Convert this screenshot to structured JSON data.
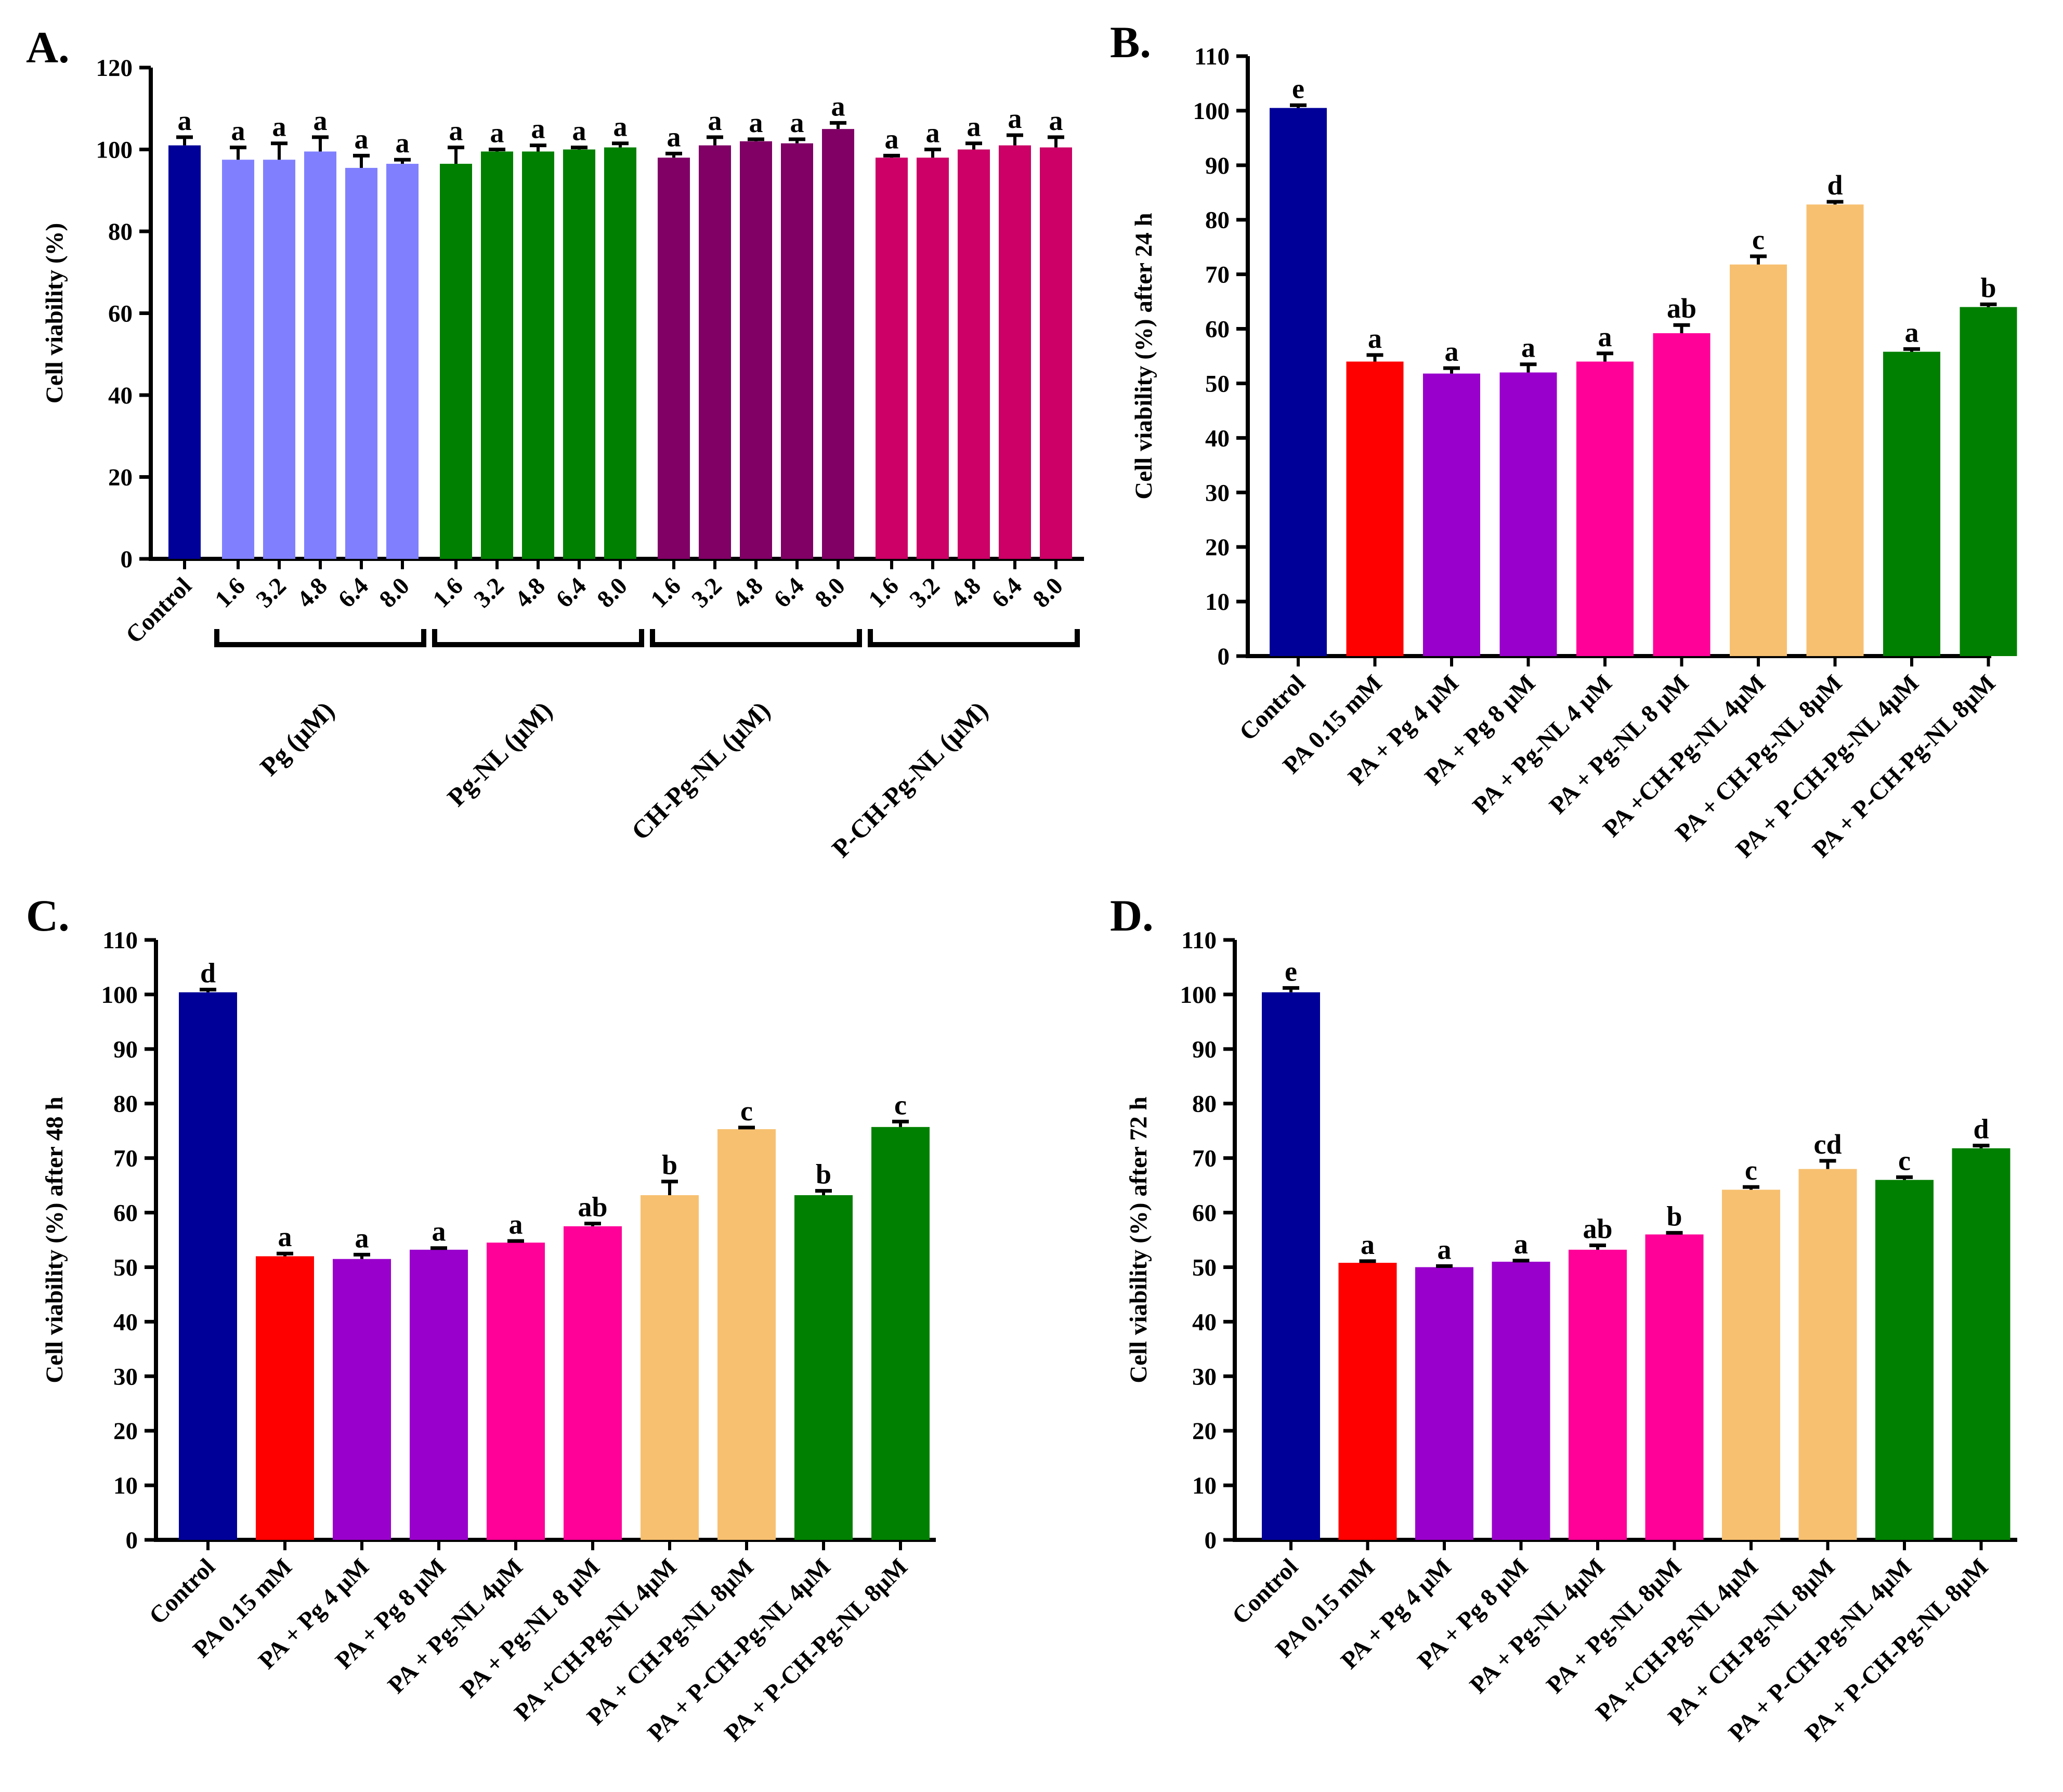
{
  "chart_data": [
    {
      "panel": "A.",
      "type": "bar",
      "ylabel": "Cell viability (%)",
      "ylim": [
        0,
        120
      ],
      "yticks": [
        0,
        20,
        40,
        60,
        80,
        100,
        120
      ],
      "bars": [
        {
          "label": "Control",
          "value": 101,
          "error": 2,
          "sig": "a",
          "color": "#000099",
          "group": null
        },
        {
          "label": "1.6",
          "value": 97.5,
          "error": 3,
          "sig": "a",
          "color": "#8080ff",
          "group": 0
        },
        {
          "label": "3.2",
          "value": 97.5,
          "error": 4,
          "sig": "a",
          "color": "#8080ff",
          "group": 0
        },
        {
          "label": "4.8",
          "value": 99.5,
          "error": 3.5,
          "sig": "a",
          "color": "#8080ff",
          "group": 0
        },
        {
          "label": "6.4",
          "value": 95.5,
          "error": 3,
          "sig": "a",
          "color": "#8080ff",
          "group": 0
        },
        {
          "label": "8.0",
          "value": 96.5,
          "error": 1,
          "sig": "a",
          "color": "#8080ff",
          "group": 0
        },
        {
          "label": "1.6",
          "value": 96.5,
          "error": 4,
          "sig": "a",
          "color": "#008000",
          "group": 1
        },
        {
          "label": "3.2",
          "value": 99.5,
          "error": 0.5,
          "sig": "a",
          "color": "#008000",
          "group": 1
        },
        {
          "label": "4.8",
          "value": 99.5,
          "error": 1.5,
          "sig": "a",
          "color": "#008000",
          "group": 1
        },
        {
          "label": "6.4",
          "value": 100,
          "error": 0.5,
          "sig": "a",
          "color": "#008000",
          "group": 1
        },
        {
          "label": "8.0",
          "value": 100.5,
          "error": 1,
          "sig": "a",
          "color": "#008000",
          "group": 1
        },
        {
          "label": "1.6",
          "value": 98,
          "error": 1,
          "sig": "a",
          "color": "#800066",
          "group": 2
        },
        {
          "label": "3.2",
          "value": 101,
          "error": 2,
          "sig": "a",
          "color": "#800066",
          "group": 2
        },
        {
          "label": "4.8",
          "value": 102,
          "error": 0.5,
          "sig": "a",
          "color": "#800066",
          "group": 2
        },
        {
          "label": "6.4",
          "value": 101.5,
          "error": 1,
          "sig": "a",
          "color": "#800066",
          "group": 2
        },
        {
          "label": "8.0",
          "value": 105,
          "error": 1.5,
          "sig": "a",
          "color": "#800066",
          "group": 2
        },
        {
          "label": "1.6",
          "value": 98,
          "error": 0.5,
          "sig": "a",
          "color": "#cc0066",
          "group": 3
        },
        {
          "label": "3.2",
          "value": 98,
          "error": 2,
          "sig": "a",
          "color": "#cc0066",
          "group": 3
        },
        {
          "label": "4.8",
          "value": 100,
          "error": 1.5,
          "sig": "a",
          "color": "#cc0066",
          "group": 3
        },
        {
          "label": "6.4",
          "value": 101,
          "error": 2.5,
          "sig": "a",
          "color": "#cc0066",
          "group": 3
        },
        {
          "label": "8.0",
          "value": 100.5,
          "error": 2.5,
          "sig": "a",
          "color": "#cc0066",
          "group": 3
        }
      ],
      "groups": [
        "Pg (μM)",
        "Pg-NL (μM)",
        "CH-Pg-NL (μM)",
        "P-CH-Pg-NL (μM)"
      ]
    },
    {
      "panel": "B.",
      "type": "bar",
      "ylabel": "Cell viability (%) after 24 h",
      "ylim": [
        0,
        110
      ],
      "yticks": [
        0,
        10,
        20,
        30,
        40,
        50,
        60,
        70,
        80,
        90,
        100,
        110
      ],
      "bars": [
        {
          "label": "Control",
          "value": 100.5,
          "error": 0.5,
          "sig": "e",
          "color": "#000099"
        },
        {
          "label": "PA 0.15 mM",
          "value": 54,
          "error": 1.2,
          "sig": "a",
          "color": "#ff0000"
        },
        {
          "label": "PA + Pg 4 μM",
          "value": 51.8,
          "error": 1,
          "sig": "a",
          "color": "#9900cc"
        },
        {
          "label": "PA + Pg 8 μM",
          "value": 52,
          "error": 1.5,
          "sig": "a",
          "color": "#9900cc"
        },
        {
          "label": "PA + Pg-NL 4 μM",
          "value": 54,
          "error": 1.5,
          "sig": "a",
          "color": "#ff0099"
        },
        {
          "label": "PA + Pg-NL 8 μM",
          "value": 59.2,
          "error": 1.5,
          "sig": "ab",
          "color": "#ff0099"
        },
        {
          "label": "PA +CH-Pg-NL 4μM",
          "value": 71.8,
          "error": 1.5,
          "sig": "c",
          "color": "#f7c070"
        },
        {
          "label": "PA + CH-Pg-NL 8μM",
          "value": 82.8,
          "error": 0.5,
          "sig": "d",
          "color": "#f7c070"
        },
        {
          "label": "PA + P-CH-Pg-NL 4μM",
          "value": 55.8,
          "error": 0.5,
          "sig": "a",
          "color": "#008000"
        },
        {
          "label": "PA + P-CH-Pg-NL 8μM",
          "value": 64,
          "error": 0.5,
          "sig": "b",
          "color": "#008000"
        }
      ]
    },
    {
      "panel": "C.",
      "type": "bar",
      "ylabel": "Cell viability (%) after 48 h",
      "ylim": [
        0,
        110
      ],
      "yticks": [
        0,
        10,
        20,
        30,
        40,
        50,
        60,
        70,
        80,
        90,
        100,
        110
      ],
      "bars": [
        {
          "label": "Control",
          "value": 100.4,
          "error": 0.5,
          "sig": "d",
          "color": "#000099"
        },
        {
          "label": "PA 0.15 mM",
          "value": 52,
          "error": 0.5,
          "sig": "a",
          "color": "#ff0000"
        },
        {
          "label": "PA + Pg 4 μM",
          "value": 51.5,
          "error": 0.8,
          "sig": "a",
          "color": "#9900cc"
        },
        {
          "label": "PA + Pg 8 μM",
          "value": 53.2,
          "error": 0.3,
          "sig": "a",
          "color": "#9900cc"
        },
        {
          "label": "PA + Pg-NL 4μM",
          "value": 54.5,
          "error": 0.3,
          "sig": "a",
          "color": "#ff0099"
        },
        {
          "label": "PA + Pg-NL 8 μM",
          "value": 57.5,
          "error": 0.5,
          "sig": "ab",
          "color": "#ff0099"
        },
        {
          "label": "PA +CH-Pg-NL 4μM",
          "value": 63.2,
          "error": 2.5,
          "sig": "b",
          "color": "#f7c070"
        },
        {
          "label": "PA + CH-Pg-NL 8μM",
          "value": 75.3,
          "error": 0.3,
          "sig": "c",
          "color": "#f7c070"
        },
        {
          "label": "PA + P-CH-Pg-NL 4μM",
          "value": 63.2,
          "error": 0.8,
          "sig": "b",
          "color": "#008000"
        },
        {
          "label": "PA + P-CH-Pg-NL 8μM",
          "value": 75.7,
          "error": 1,
          "sig": "c",
          "color": "#008000"
        }
      ]
    },
    {
      "panel": "D.",
      "type": "bar",
      "ylabel": "Cell viability (%) after 72 h",
      "ylim": [
        0,
        110
      ],
      "yticks": [
        0,
        10,
        20,
        30,
        40,
        50,
        60,
        70,
        80,
        90,
        100,
        110
      ],
      "bars": [
        {
          "label": "Control",
          "value": 100.4,
          "error": 0.8,
          "sig": "e",
          "color": "#000099"
        },
        {
          "label": "PA 0.15 mM",
          "value": 50.8,
          "error": 0.3,
          "sig": "a",
          "color": "#ff0000"
        },
        {
          "label": "PA + Pg 4 μM",
          "value": 50,
          "error": 0.2,
          "sig": "a",
          "color": "#9900cc"
        },
        {
          "label": "PA + Pg 8 μM",
          "value": 51,
          "error": 0.2,
          "sig": "a",
          "color": "#9900cc"
        },
        {
          "label": "PA + Pg-NL 4μM",
          "value": 53.2,
          "error": 0.8,
          "sig": "ab",
          "color": "#ff0099"
        },
        {
          "label": "PA + Pg-NL 8μM",
          "value": 56,
          "error": 0.3,
          "sig": "b",
          "color": "#ff0099"
        },
        {
          "label": "PA +CH-Pg-NL 4μM",
          "value": 64.2,
          "error": 0.5,
          "sig": "c",
          "color": "#f7c070"
        },
        {
          "label": "PA + CH-Pg-NL 8μM",
          "value": 68,
          "error": 1.5,
          "sig": "cd",
          "color": "#f7c070"
        },
        {
          "label": "PA + P-CH-Pg-NL 4μM",
          "value": 66,
          "error": 0.5,
          "sig": "c",
          "color": "#008000"
        },
        {
          "label": "PA + P-CH-Pg-NL 8μM",
          "value": 71.8,
          "error": 0.5,
          "sig": "d",
          "color": "#008000"
        }
      ]
    }
  ]
}
